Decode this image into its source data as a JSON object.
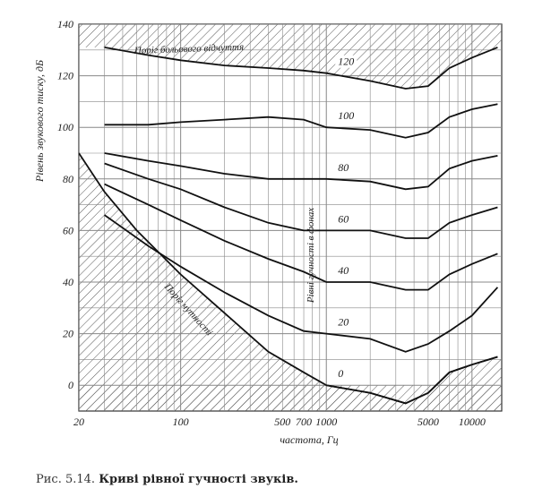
{
  "chart_data": {
    "type": "line",
    "title": "",
    "xlabel": "частота, Гц",
    "ylabel": "Рівень звукового тиску, дБ",
    "x_scale": "log",
    "xlim": [
      20,
      16000
    ],
    "ylim": [
      -10,
      140
    ],
    "x_ticks": [
      {
        "value": 20,
        "label": "20"
      },
      {
        "value": 100,
        "label": "100"
      },
      {
        "value": 500,
        "label": "500"
      },
      {
        "value": 700,
        "label": "700"
      },
      {
        "value": 1000,
        "label": "1000"
      },
      {
        "value": 5000,
        "label": "5000"
      },
      {
        "value": 10000,
        "label": "10000"
      }
    ],
    "y_ticks": [
      0,
      20,
      40,
      60,
      80,
      100,
      120,
      140
    ],
    "grid": true,
    "series": [
      {
        "name": "0",
        "x": [
          1000,
          2000,
          3500,
          5000,
          7000,
          10000,
          15000
        ],
        "y": [
          0,
          -3,
          -7,
          -3,
          5,
          8,
          11
        ]
      },
      {
        "name": "20",
        "x": [
          30,
          60,
          100,
          200,
          400,
          700,
          1000,
          2000,
          3500,
          5000,
          7000,
          10000,
          15000
        ],
        "y": [
          66,
          54,
          46,
          36,
          27,
          21,
          20,
          18,
          13,
          16,
          21,
          27,
          38
        ]
      },
      {
        "name": "40",
        "x": [
          30,
          60,
          100,
          200,
          400,
          700,
          1000,
          2000,
          3500,
          5000,
          7000,
          10000,
          15000
        ],
        "y": [
          78,
          70,
          64,
          56,
          49,
          44,
          40,
          40,
          37,
          37,
          43,
          47,
          51
        ]
      },
      {
        "name": "60",
        "x": [
          30,
          60,
          100,
          200,
          400,
          700,
          1000,
          2000,
          3500,
          5000,
          7000,
          10000,
          15000
        ],
        "y": [
          86,
          80,
          76,
          69,
          63,
          60,
          60,
          60,
          57,
          57,
          63,
          66,
          69
        ]
      },
      {
        "name": "80",
        "x": [
          30,
          60,
          100,
          200,
          400,
          700,
          1000,
          2000,
          3500,
          5000,
          7000,
          10000,
          15000
        ],
        "y": [
          90,
          87,
          85,
          82,
          80,
          80,
          80,
          79,
          76,
          77,
          84,
          87,
          89
        ]
      },
      {
        "name": "100",
        "x": [
          30,
          60,
          100,
          200,
          400,
          700,
          1000,
          2000,
          3500,
          5000,
          7000,
          10000,
          15000
        ],
        "y": [
          101,
          101,
          102,
          103,
          104,
          103,
          100,
          99,
          96,
          98,
          104,
          107,
          109
        ]
      },
      {
        "name": "120",
        "x": [
          30,
          60,
          100,
          200,
          400,
          700,
          1000,
          2000,
          3500,
          5000,
          7000,
          10000,
          15000
        ],
        "y": [
          131,
          128,
          126,
          124,
          123,
          122,
          121,
          118,
          115,
          116,
          123,
          127,
          131
        ]
      }
    ],
    "threshold_pain": {
      "label": "Поріг больового відчуття",
      "x": [
        30,
        60,
        100,
        200,
        400,
        700,
        1000,
        2000,
        3500,
        5000,
        7000,
        10000,
        15000
      ],
      "y": [
        131,
        128,
        126,
        124,
        123,
        122,
        121,
        118,
        115,
        116,
        123,
        127,
        131
      ]
    },
    "threshold_hearing": {
      "label": "Поріг чутності",
      "x": [
        20,
        30,
        50,
        100,
        200,
        400,
        700,
        1000,
        2000,
        3500,
        5000,
        7000,
        10000,
        15000
      ],
      "y": [
        90,
        75,
        60,
        43,
        28,
        13,
        5,
        0,
        -3,
        -7,
        -3,
        5,
        8,
        11
      ]
    },
    "vertical_annotation": "Рівні гучності в фонах"
  },
  "caption": {
    "prefix": "Рис. 5.14.",
    "title": "Криві рівної гучності звуків."
  }
}
